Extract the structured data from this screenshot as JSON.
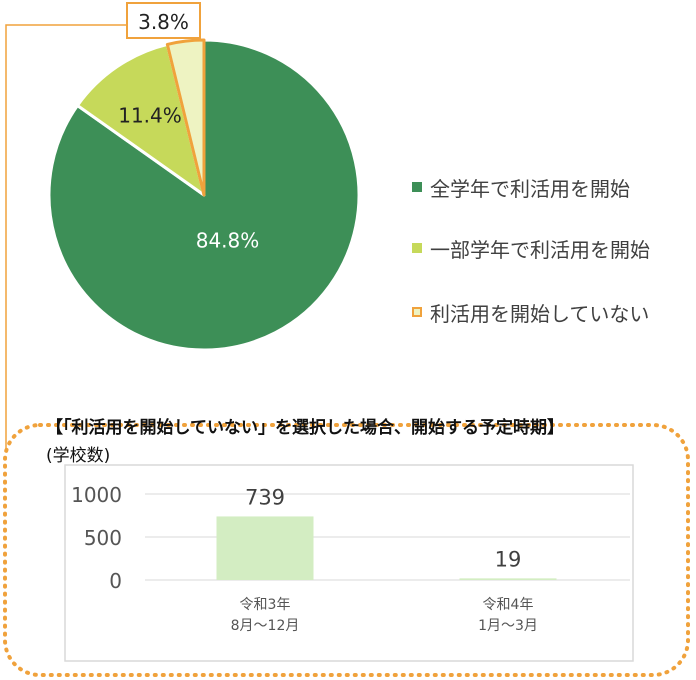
{
  "chart_data": [
    {
      "type": "pie",
      "categories": [
        "全学年で利活用を開始",
        "一部学年で利活用を開始",
        "利活用を開始していない"
      ],
      "values": [
        84.8,
        11.4,
        3.8
      ],
      "data_labels": [
        "84.8%",
        "11.4%",
        "3.8%"
      ],
      "colors": [
        "#3d8f57",
        "#c6d95a",
        "#eef3c2"
      ],
      "highlight_color": "#f0a23c",
      "legend": "right"
    },
    {
      "type": "bar",
      "title": "【「利活用を開始していない」を選択した場合、開始する予定時期】",
      "subtitle": "(学校数)",
      "categories": [
        [
          "令和3年",
          "8月～12月"
        ],
        [
          "令和4年",
          "1月～3月"
        ]
      ],
      "values": [
        739,
        19
      ],
      "data_labels": [
        "739",
        "19"
      ],
      "yticks": [
        "0",
        "500",
        "1000"
      ],
      "ylim": [
        0,
        1000
      ],
      "bar_color": "#d3edc2",
      "grid": true
    }
  ]
}
